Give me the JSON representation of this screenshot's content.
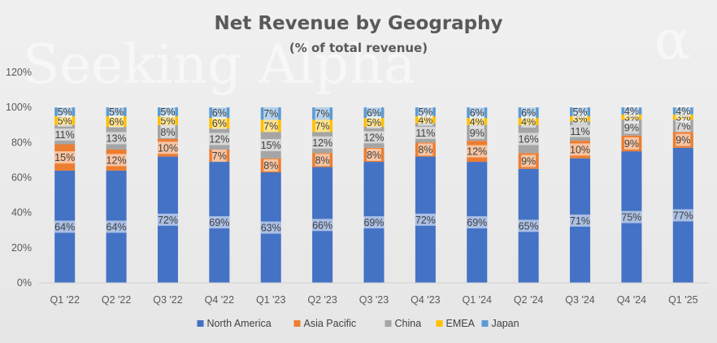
{
  "watermark": {
    "text": "Seeking Alpha",
    "symbol": "α"
  },
  "chart_data": {
    "type": "bar",
    "stacked": true,
    "title": "Net Revenue by Geography",
    "subtitle": "(% of total revenue)",
    "xlabel": "",
    "ylabel": "",
    "ylim": [
      0,
      120
    ],
    "yticks": [
      "0%",
      "20%",
      "40%",
      "60%",
      "80%",
      "100%",
      "120%"
    ],
    "ytick_values": [
      0,
      20,
      40,
      60,
      80,
      100,
      120
    ],
    "grid": false,
    "legend_position": "bottom",
    "categories": [
      "Q1 '22",
      "Q2 '22",
      "Q3 '22",
      "Q4 '22",
      "Q1 '23",
      "Q2 '23",
      "Q3 '23",
      "Q4 '23",
      "Q1 '24",
      "Q2 '24",
      "Q3 '24",
      "Q4 '24",
      "Q1 '25"
    ],
    "series": [
      {
        "name": "North America",
        "color": "#4472c4",
        "values": [
          64,
          64,
          72,
          69,
          63,
          66,
          69,
          72,
          69,
          65,
          71,
          75,
          77
        ],
        "labels": [
          "64%",
          "64%",
          "72%",
          "69%",
          "63%",
          "66%",
          "69%",
          "72%",
          "69%",
          "65%",
          "71%",
          "75%",
          "77%"
        ]
      },
      {
        "name": "Asia Pacific",
        "color": "#ed7d31",
        "values": [
          15,
          12,
          10,
          7,
          8,
          8,
          8,
          8,
          12,
          9,
          10,
          9,
          9
        ],
        "labels": [
          "15%",
          "12%",
          "10%",
          "7%",
          "8%",
          "8%",
          "8%",
          "8%",
          "12%",
          "9%",
          "10%",
          "9%",
          "9%"
        ]
      },
      {
        "name": "China",
        "color": "#a5a5a5",
        "values": [
          11,
          13,
          8,
          12,
          15,
          12,
          12,
          11,
          9,
          16,
          11,
          9,
          7
        ],
        "labels": [
          "11%",
          "13%",
          "8%",
          "12%",
          "15%",
          "12%",
          "12%",
          "11%",
          "9%",
          "16%",
          "11%",
          "9%",
          "7%"
        ]
      },
      {
        "name": "EMEA",
        "color": "#ffc000",
        "values": [
          5,
          6,
          5,
          6,
          7,
          7,
          5,
          4,
          4,
          4,
          3,
          3,
          3
        ],
        "labels": [
          "5%",
          "6%",
          "5%",
          "6%",
          "7%",
          "7%",
          "5%",
          "4%",
          "4%",
          "4%",
          "3%",
          "3%",
          "3%"
        ]
      },
      {
        "name": "Japan",
        "color": "#5b9bd5",
        "values": [
          5,
          5,
          5,
          6,
          7,
          7,
          6,
          5,
          6,
          6,
          5,
          4,
          4
        ],
        "labels": [
          "5%",
          "5%",
          "5%",
          "6%",
          "7%",
          "7%",
          "6%",
          "5%",
          "6%",
          "6%",
          "5%",
          "4%",
          "4%"
        ]
      }
    ]
  }
}
